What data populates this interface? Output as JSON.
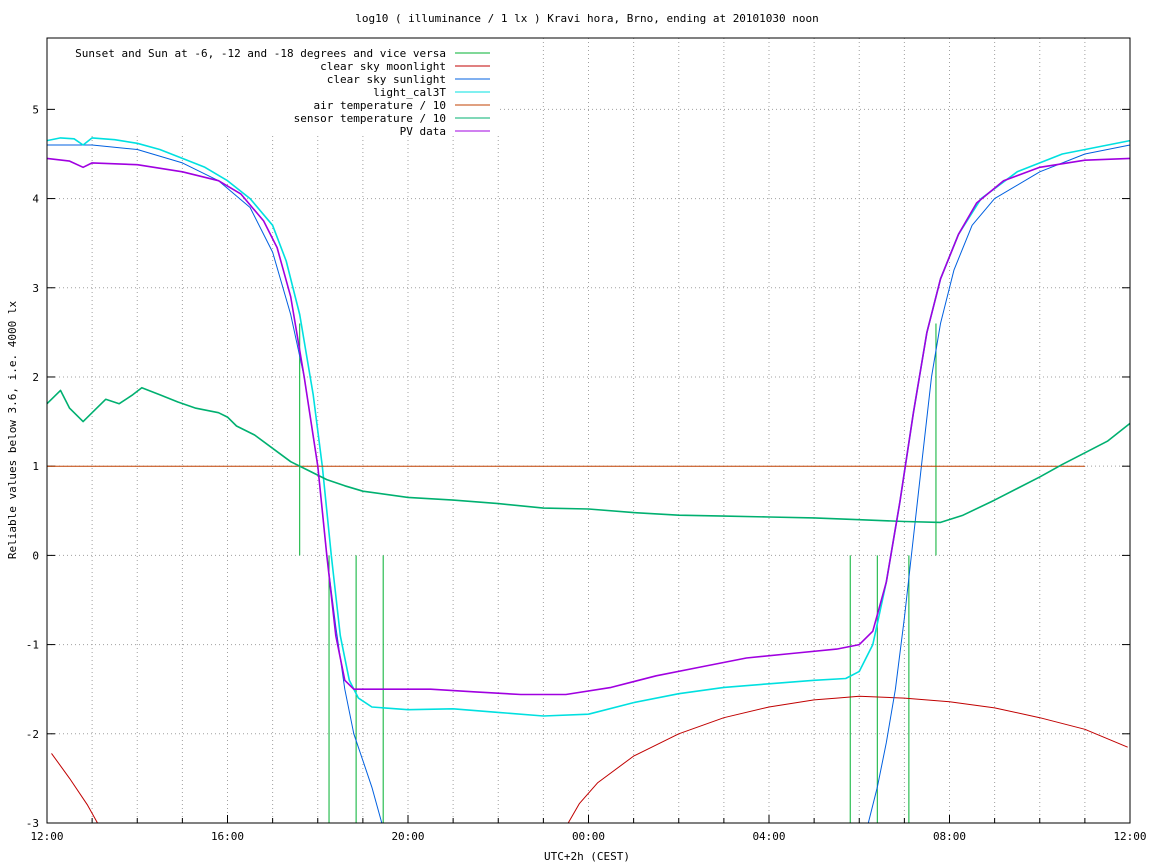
{
  "chart_data": {
    "type": "line",
    "title": "log10 ( illuminance / 1 lx ) Kravi hora, Brno, ending at 20101030 noon",
    "xlabel": "UTC+2h (CEST)",
    "ylabel": "Reliable values below 3.6, i.e. 4000 lx",
    "xlim": [
      0,
      24
    ],
    "ylim": [
      -3,
      5.8
    ],
    "x_ticks": [
      {
        "x": 0,
        "label": "12:00"
      },
      {
        "x": 4,
        "label": "16:00"
      },
      {
        "x": 8,
        "label": "20:00"
      },
      {
        "x": 12,
        "label": "00:00"
      },
      {
        "x": 16,
        "label": "04:00"
      },
      {
        "x": 20,
        "label": "08:00"
      },
      {
        "x": 24,
        "label": "12:00"
      }
    ],
    "y_ticks": [
      {
        "y": -3,
        "label": "-3"
      },
      {
        "y": -2,
        "label": "-2"
      },
      {
        "y": -1,
        "label": "-1"
      },
      {
        "y": 0,
        "label": "0"
      },
      {
        "y": 1,
        "label": "1"
      },
      {
        "y": 2,
        "label": "2"
      },
      {
        "y": 3,
        "label": "3"
      },
      {
        "y": 4,
        "label": "4"
      },
      {
        "y": 5,
        "label": "5"
      }
    ],
    "x_grid_step": 1,
    "grid": true,
    "legend_position": "top-left",
    "series": [
      {
        "name": "Sunset and Sun at -6, -12 and -18 degrees and vice versa",
        "color": "#00b030",
        "style": "impulses",
        "points": [
          [
            5.6,
            2.6
          ],
          [
            6.25,
            0
          ],
          [
            6.85,
            0
          ],
          [
            7.45,
            0
          ],
          [
            17.8,
            0
          ],
          [
            18.4,
            0
          ],
          [
            19.1,
            0
          ],
          [
            19.7,
            2.6
          ]
        ]
      },
      {
        "name": "clear sky moonlight",
        "color": "#c00000",
        "points": [
          [
            0.1,
            -2.22
          ],
          [
            0.5,
            -2.5
          ],
          [
            0.9,
            -2.8
          ],
          [
            1.12,
            -3
          ],
          [
            11.55,
            -3
          ],
          [
            11.8,
            -2.78
          ],
          [
            12.2,
            -2.55
          ],
          [
            13,
            -2.25
          ],
          [
            14,
            -2.0
          ],
          [
            15,
            -1.82
          ],
          [
            16,
            -1.7
          ],
          [
            17,
            -1.62
          ],
          [
            17.5,
            -1.6
          ],
          [
            18,
            -1.58
          ],
          [
            19,
            -1.6
          ],
          [
            20,
            -1.64
          ],
          [
            21,
            -1.71
          ],
          [
            22,
            -1.82
          ],
          [
            23,
            -1.95
          ],
          [
            23.95,
            -2.15
          ]
        ]
      },
      {
        "name": "clear sky sunlight",
        "color": "#0060e0",
        "points": [
          [
            0,
            4.6
          ],
          [
            1,
            4.6
          ],
          [
            2,
            4.55
          ],
          [
            3,
            4.4
          ],
          [
            3.8,
            4.2
          ],
          [
            4.5,
            3.9
          ],
          [
            5,
            3.4
          ],
          [
            5.4,
            2.7
          ],
          [
            5.7,
            2.0
          ],
          [
            6.0,
            1.0
          ],
          [
            6.2,
            0
          ],
          [
            6.4,
            -0.8
          ],
          [
            6.6,
            -1.5
          ],
          [
            6.8,
            -2.0
          ],
          [
            7.0,
            -2.3
          ],
          [
            7.2,
            -2.6
          ],
          [
            7.42,
            -3
          ],
          [
            18.2,
            -3
          ],
          [
            18.4,
            -2.6
          ],
          [
            18.6,
            -2.1
          ],
          [
            18.8,
            -1.5
          ],
          [
            19.0,
            -0.7
          ],
          [
            19.2,
            0.2
          ],
          [
            19.4,
            1.1
          ],
          [
            19.6,
            2.0
          ],
          [
            19.8,
            2.6
          ],
          [
            20.1,
            3.2
          ],
          [
            20.5,
            3.7
          ],
          [
            21,
            4.0
          ],
          [
            22,
            4.3
          ],
          [
            23,
            4.5
          ],
          [
            24,
            4.6
          ]
        ]
      },
      {
        "name": "light_cal3T",
        "color": "#00e0e0",
        "points": [
          [
            0,
            4.65
          ],
          [
            0.3,
            4.68
          ],
          [
            0.6,
            4.67
          ],
          [
            0.8,
            4.6
          ],
          [
            1.0,
            4.68
          ],
          [
            1.5,
            4.66
          ],
          [
            2,
            4.62
          ],
          [
            2.5,
            4.55
          ],
          [
            3,
            4.45
          ],
          [
            3.5,
            4.35
          ],
          [
            4,
            4.2
          ],
          [
            4.5,
            4.0
          ],
          [
            5,
            3.7
          ],
          [
            5.3,
            3.3
          ],
          [
            5.6,
            2.7
          ],
          [
            5.9,
            1.8
          ],
          [
            6.1,
            1.0
          ],
          [
            6.3,
            0
          ],
          [
            6.5,
            -0.9
          ],
          [
            6.7,
            -1.4
          ],
          [
            6.9,
            -1.6
          ],
          [
            7.2,
            -1.7
          ],
          [
            8,
            -1.73
          ],
          [
            9,
            -1.72
          ],
          [
            10,
            -1.76
          ],
          [
            11,
            -1.8
          ],
          [
            12,
            -1.78
          ],
          [
            13,
            -1.65
          ],
          [
            14,
            -1.55
          ],
          [
            15,
            -1.48
          ],
          [
            16,
            -1.44
          ],
          [
            17,
            -1.4
          ],
          [
            17.7,
            -1.38
          ],
          [
            18.0,
            -1.3
          ],
          [
            18.3,
            -1.0
          ],
          [
            18.6,
            -0.3
          ],
          [
            18.9,
            0.6
          ],
          [
            19.2,
            1.6
          ],
          [
            19.5,
            2.5
          ],
          [
            19.8,
            3.1
          ],
          [
            20.2,
            3.6
          ],
          [
            20.7,
            4.0
          ],
          [
            21.5,
            4.3
          ],
          [
            22.5,
            4.5
          ],
          [
            24,
            4.65
          ]
        ]
      },
      {
        "name": "air temperature / 10",
        "color": "#c04000",
        "points": [
          [
            0,
            1.0
          ],
          [
            23,
            1.0
          ]
        ]
      },
      {
        "name": "sensor temperature / 10",
        "color": "#00b070",
        "points": [
          [
            0,
            1.7
          ],
          [
            0.3,
            1.85
          ],
          [
            0.5,
            1.65
          ],
          [
            0.8,
            1.5
          ],
          [
            1.0,
            1.6
          ],
          [
            1.3,
            1.75
          ],
          [
            1.6,
            1.7
          ],
          [
            1.9,
            1.8
          ],
          [
            2.1,
            1.88
          ],
          [
            2.5,
            1.8
          ],
          [
            2.9,
            1.72
          ],
          [
            3.3,
            1.65
          ],
          [
            3.8,
            1.6
          ],
          [
            4.0,
            1.55
          ],
          [
            4.2,
            1.45
          ],
          [
            4.6,
            1.35
          ],
          [
            5,
            1.2
          ],
          [
            5.4,
            1.05
          ],
          [
            5.8,
            0.95
          ],
          [
            6.2,
            0.85
          ],
          [
            6.6,
            0.78
          ],
          [
            7,
            0.72
          ],
          [
            8,
            0.65
          ],
          [
            9,
            0.62
          ],
          [
            10,
            0.58
          ],
          [
            11,
            0.53
          ],
          [
            12,
            0.52
          ],
          [
            13,
            0.48
          ],
          [
            14,
            0.45
          ],
          [
            15,
            0.44
          ],
          [
            16,
            0.43
          ],
          [
            17,
            0.42
          ],
          [
            18,
            0.4
          ],
          [
            19,
            0.38
          ],
          [
            19.8,
            0.37
          ],
          [
            20.3,
            0.45
          ],
          [
            21,
            0.62
          ],
          [
            21.5,
            0.75
          ],
          [
            22,
            0.88
          ],
          [
            22.5,
            1.02
          ],
          [
            23,
            1.15
          ],
          [
            23.5,
            1.28
          ],
          [
            24,
            1.48
          ]
        ]
      },
      {
        "name": "PV data",
        "color": "#a000e0",
        "points": [
          [
            0,
            4.45
          ],
          [
            0.5,
            4.42
          ],
          [
            0.8,
            4.35
          ],
          [
            1,
            4.4
          ],
          [
            2,
            4.38
          ],
          [
            3,
            4.3
          ],
          [
            3.8,
            4.2
          ],
          [
            4.3,
            4.05
          ],
          [
            4.8,
            3.75
          ],
          [
            5.1,
            3.45
          ],
          [
            5.4,
            2.9
          ],
          [
            5.7,
            2.0
          ],
          [
            6.0,
            1.0
          ],
          [
            6.2,
            0
          ],
          [
            6.4,
            -0.9
          ],
          [
            6.6,
            -1.4
          ],
          [
            6.8,
            -1.5
          ],
          [
            7.5,
            -1.5
          ],
          [
            8.5,
            -1.5
          ],
          [
            9.5,
            -1.53
          ],
          [
            10.5,
            -1.56
          ],
          [
            11.5,
            -1.56
          ],
          [
            12.5,
            -1.48
          ],
          [
            13.5,
            -1.35
          ],
          [
            14.5,
            -1.25
          ],
          [
            15.5,
            -1.15
          ],
          [
            16.5,
            -1.1
          ],
          [
            17.5,
            -1.05
          ],
          [
            18,
            -1.0
          ],
          [
            18.3,
            -0.85
          ],
          [
            18.6,
            -0.3
          ],
          [
            18.9,
            0.6
          ],
          [
            19.2,
            1.6
          ],
          [
            19.5,
            2.5
          ],
          [
            19.8,
            3.1
          ],
          [
            20.2,
            3.6
          ],
          [
            20.6,
            3.95
          ],
          [
            21.2,
            4.2
          ],
          [
            22,
            4.35
          ],
          [
            23,
            4.43
          ],
          [
            24,
            4.45
          ]
        ]
      }
    ]
  }
}
